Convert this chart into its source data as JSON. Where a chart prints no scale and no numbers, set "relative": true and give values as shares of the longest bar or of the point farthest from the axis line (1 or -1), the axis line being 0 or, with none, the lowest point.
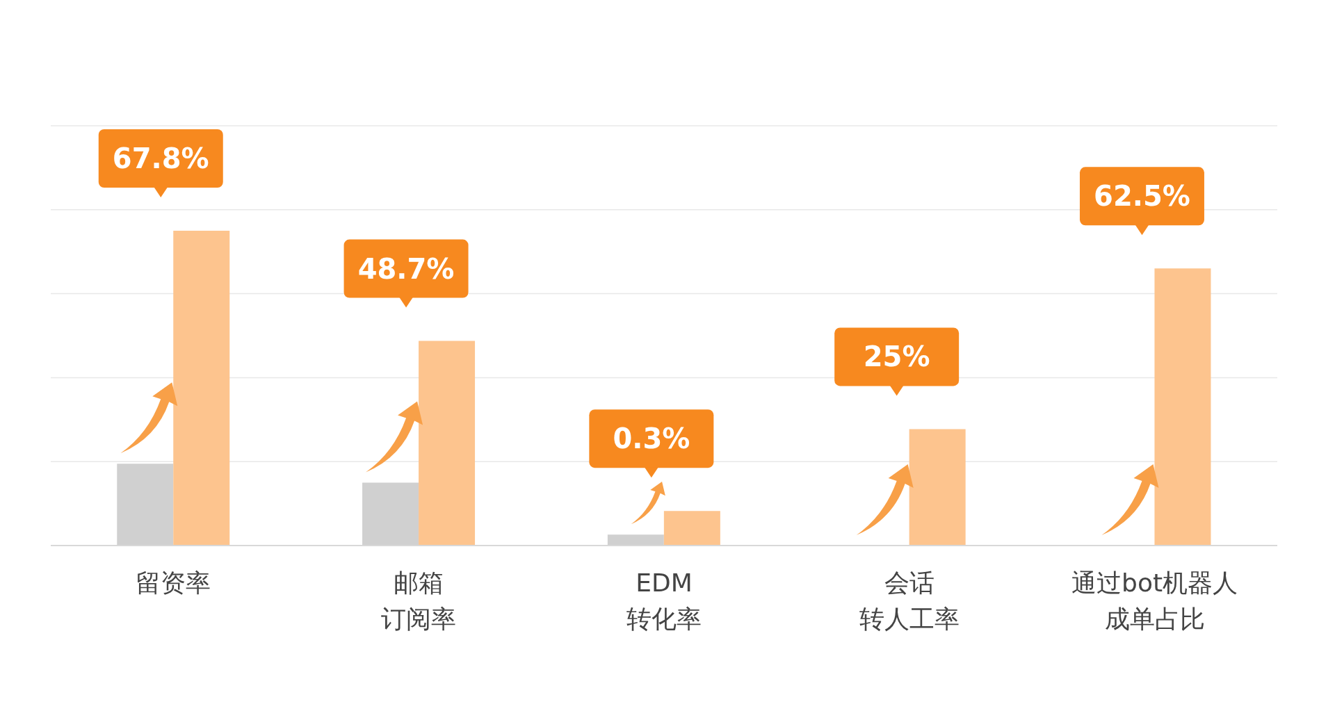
{
  "chart_data": {
    "type": "bar",
    "relative": true,
    "grid": "y",
    "categories": [
      "留资率",
      "邮箱订阅率",
      "EDM转化率",
      "会话转人工率",
      "通过bot机器人成单占比"
    ],
    "annotations": [
      "67.8%",
      "48.7%",
      "0.3%",
      "25%",
      "62.5%"
    ],
    "series": [
      {
        "color": "#d0d0d0",
        "values": [
          0.26,
          0.2,
          0.035,
          null,
          null
        ]
      },
      {
        "color": "#fdc48e",
        "values": [
          1,
          0.65,
          0.11,
          0.37,
          0.88
        ]
      }
    ]
  }
}
